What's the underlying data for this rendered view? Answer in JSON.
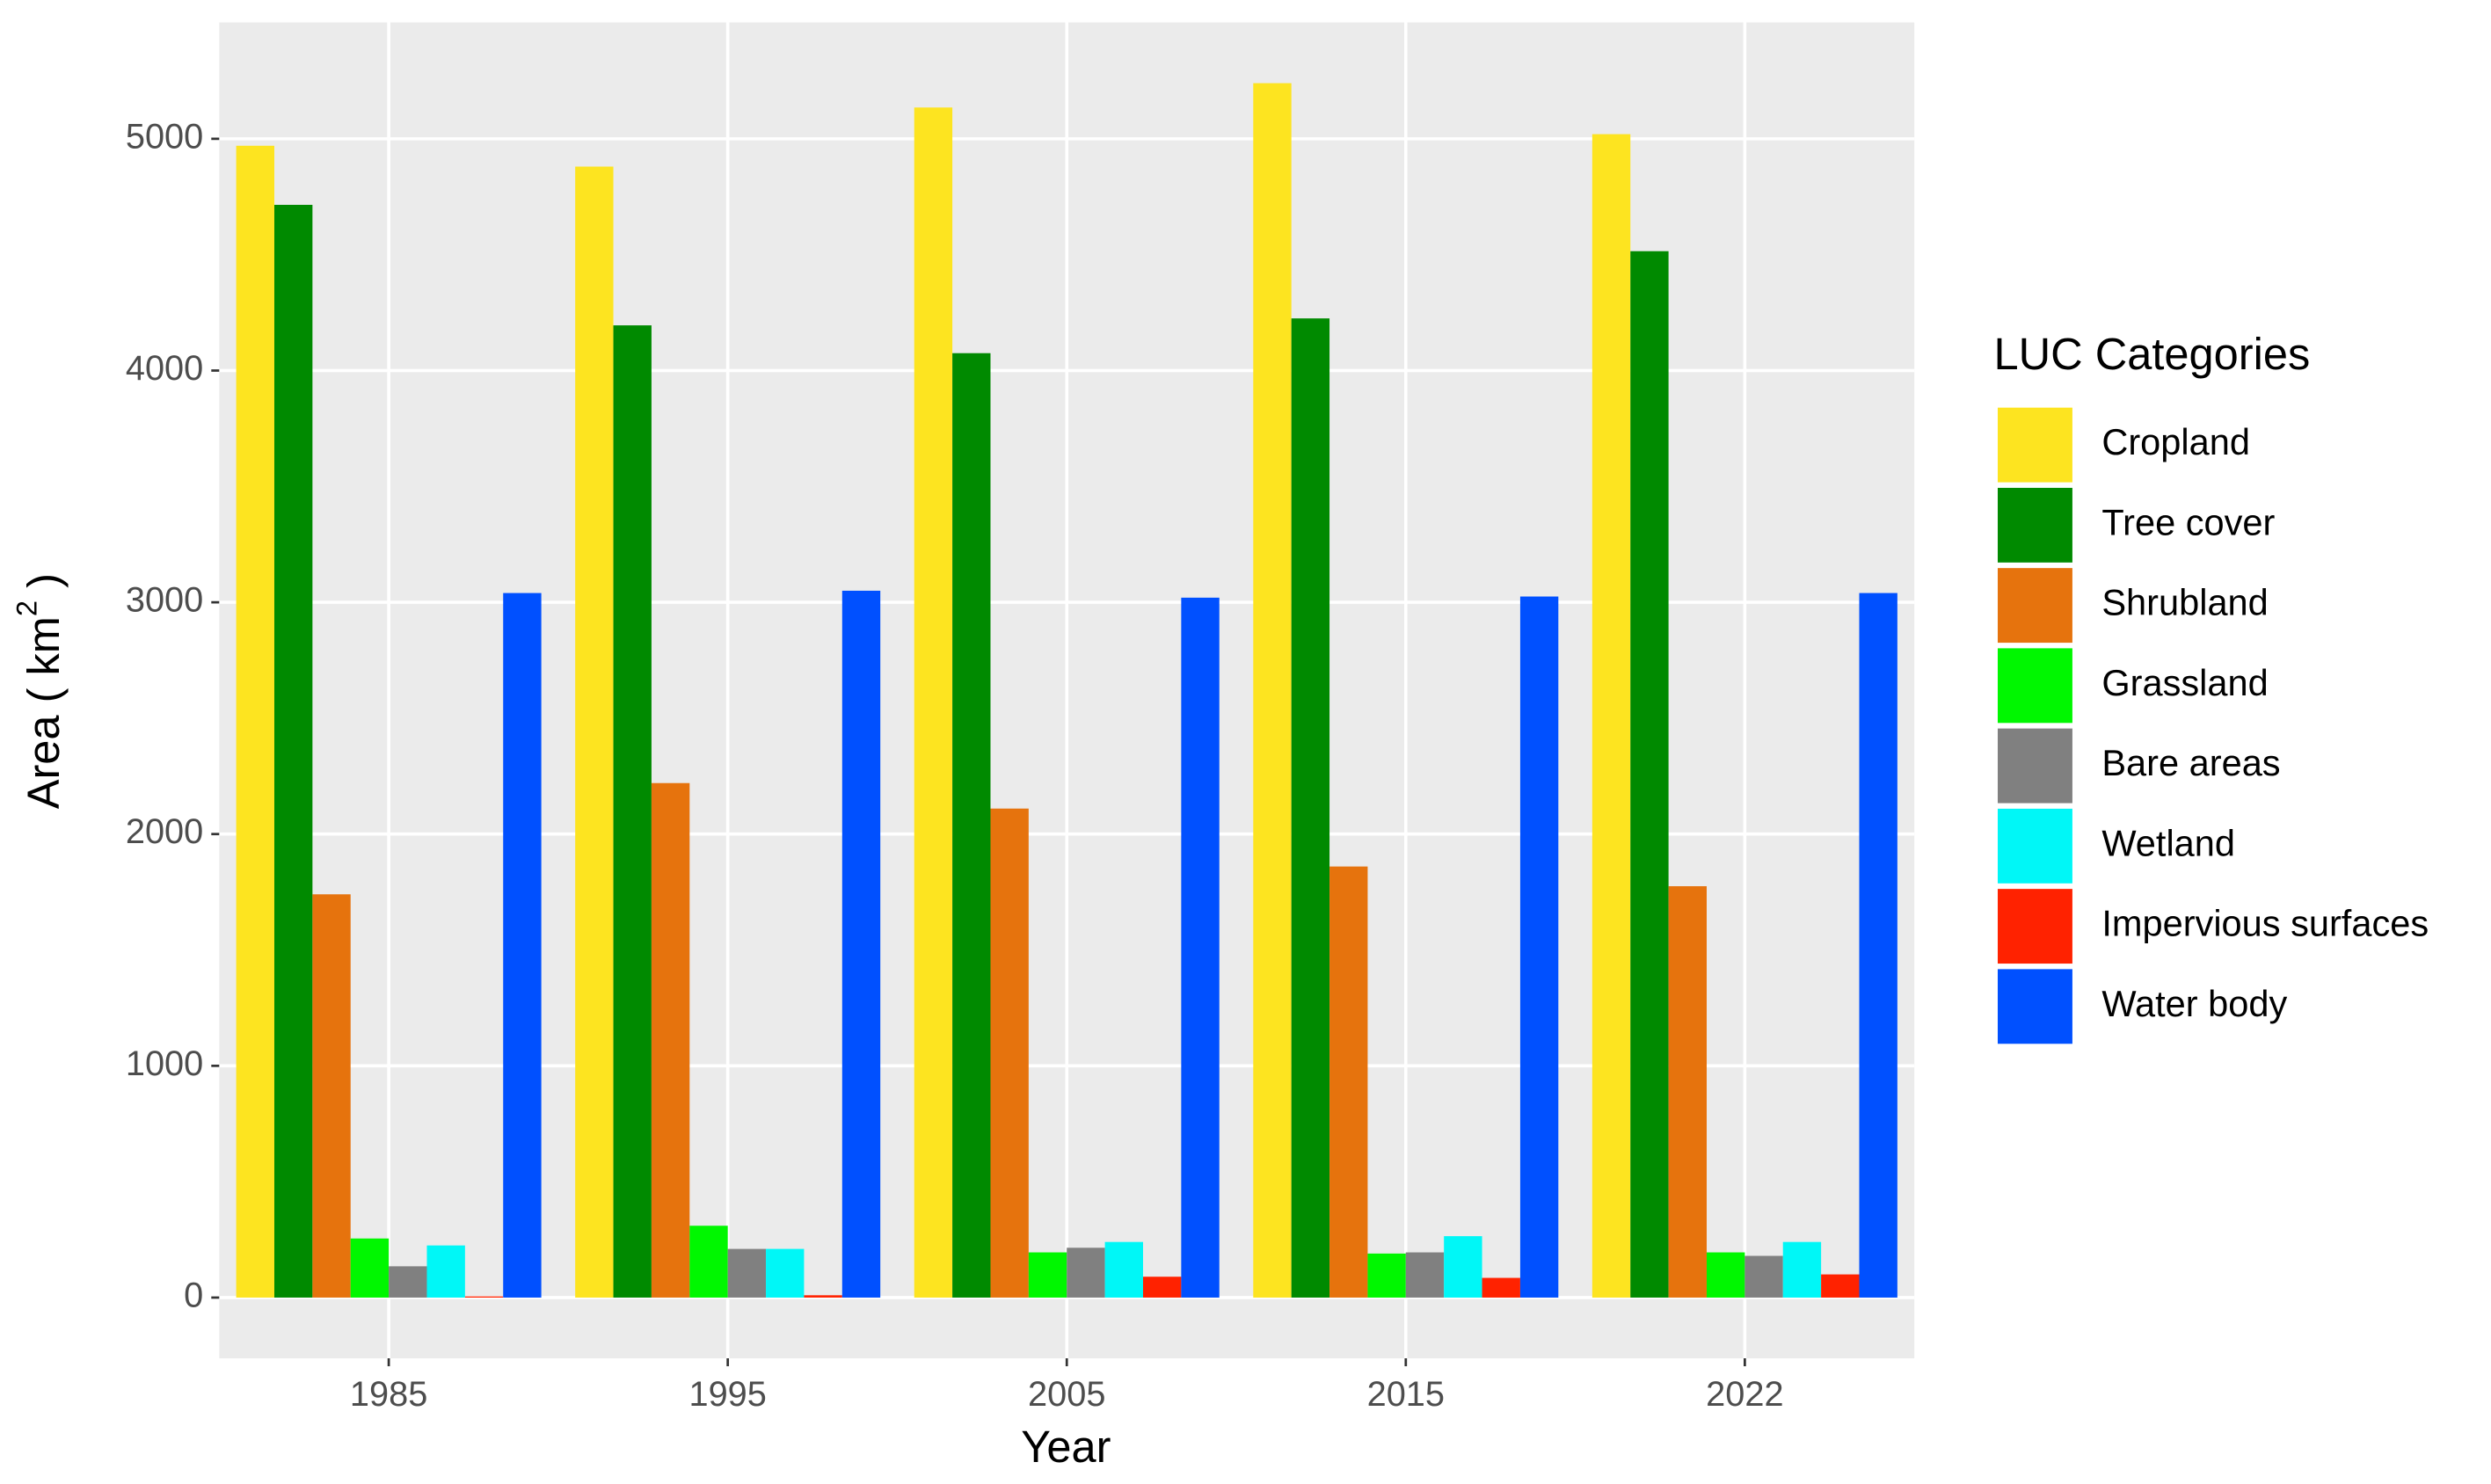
{
  "chart_data": {
    "type": "bar",
    "x_label": "Year",
    "y_label": [
      "Area ( km",
      "2",
      " )"
    ],
    "legend_title": "LUC Categories",
    "legend_position": "right",
    "grid": true,
    "categories": [
      "1985",
      "1995",
      "2005",
      "2015",
      "2022"
    ],
    "ylim": [
      -262,
      5502
    ],
    "yticks": [
      0,
      1000,
      2000,
      3000,
      4000,
      5000
    ],
    "series": [
      {
        "name": "Cropland",
        "color": "#fde420",
        "values": [
          4970,
          4880,
          5135,
          5240,
          5020
        ]
      },
      {
        "name": "Tree cover",
        "color": "#008a00",
        "values": [
          4715,
          4195,
          4075,
          4225,
          4515
        ]
      },
      {
        "name": "Shrubland",
        "color": "#e6730d",
        "values": [
          1740,
          2220,
          2110,
          1860,
          1775
        ]
      },
      {
        "name": "Grassland",
        "color": "#00f700",
        "values": [
          255,
          310,
          195,
          190,
          195
        ]
      },
      {
        "name": "Bare areas",
        "color": "#808080",
        "values": [
          135,
          210,
          215,
          195,
          180
        ]
      },
      {
        "name": "Wetland",
        "color": "#00f7f7",
        "values": [
          225,
          210,
          240,
          265,
          240
        ]
      },
      {
        "name": "Impervious surfaces",
        "color": "#ff2200",
        "values": [
          5,
          10,
          90,
          85,
          100
        ]
      },
      {
        "name": "Water body",
        "color": "#0050ff",
        "values": [
          3040,
          3050,
          3020,
          3025,
          3040
        ]
      }
    ]
  }
}
